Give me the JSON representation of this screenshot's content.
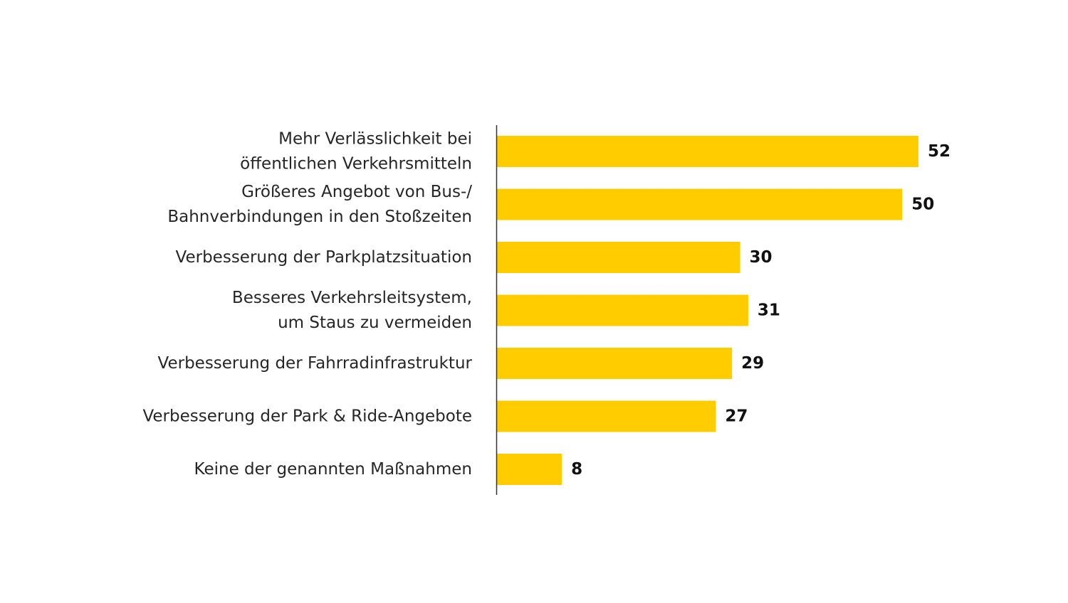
{
  "chart_data": {
    "type": "bar",
    "orientation": "horizontal",
    "title": "",
    "xlabel": "",
    "ylabel": "",
    "categories": [
      "Mehr Verlässlichkeit bei\nöffentlichen Verkehrsmitteln",
      "Größeres Angebot von Bus-/\nBahnverbindungen in den Stoßzeiten",
      "Verbesserung der Parkplatzsituation",
      "Besseres Verkehrsleitsystem,\num Staus zu vermeiden",
      "Verbesserung der Fahrradinfrastruktur",
      "Verbesserung der Park & Ride-Angebote",
      "Keine der genannten Maßnahmen"
    ],
    "values": [
      52,
      50,
      30,
      31,
      29,
      27,
      8
    ],
    "value_labels": [
      "52",
      "50",
      "30",
      "31",
      "29",
      "27",
      "8"
    ],
    "xlim": [
      0,
      52
    ],
    "grid": false,
    "legend": "none",
    "bar_color": "#ffcc00",
    "axis_color": "#333333"
  }
}
